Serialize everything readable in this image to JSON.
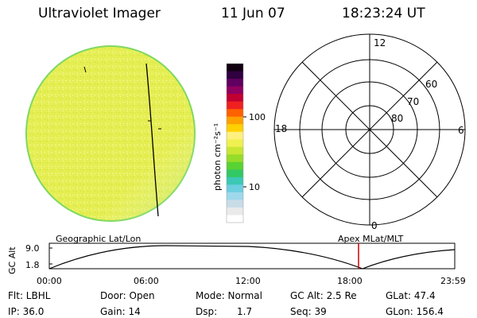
{
  "header": {
    "title": "Ultraviolet Imager",
    "date": "11 Jun 07",
    "time": "18:23:24 UT"
  },
  "colors": {
    "disk_fill": "#e6ee50",
    "disk_edge": "#7fd860",
    "accent_line": "#d00000"
  },
  "colorbar": {
    "unit": "photon cm⁻²s⁻¹",
    "tick_100": "100",
    "tick_10": "10",
    "colors": [
      "#ffffff",
      "#eaeaea",
      "#c8dce8",
      "#9ed8ec",
      "#6ccfe0",
      "#3cc8b4",
      "#32c864",
      "#5ad232",
      "#96dc28",
      "#c8e632",
      "#f0f050",
      "#fff080",
      "#ffd000",
      "#ffa000",
      "#ff6000",
      "#f02020",
      "#c00030",
      "#900060",
      "#600060",
      "#300040",
      "#100010"
    ]
  },
  "polar": {
    "label_top": "12",
    "label_bottom": "0",
    "label_left": "18",
    "label_right": "6",
    "lat_60": "60",
    "lat_70": "70",
    "lat_80": "80"
  },
  "timeline": {
    "left_title": "Geographic Lat/Lon",
    "right_title": "Apex MLat/MLT",
    "ylabel": "GC Alt",
    "y_top": "9.0",
    "y_bottom": "1.8",
    "x_ticks": [
      "00:00",
      "06:00",
      "12:00",
      "18:00",
      "23:59"
    ]
  },
  "status": {
    "flt": "Flt: LBHL",
    "ip": "IP: 36.0",
    "door": "Door: Open",
    "gain": "Gain: 14",
    "mode": "Mode: Normal",
    "dsp_label": "Dsp:",
    "dsp_value": "1.7",
    "gc_alt": "GC Alt: 2.5 Re",
    "seq": "Seq: 39",
    "glat": "GLat:  47.4",
    "glon": "GLon: 156.4"
  }
}
